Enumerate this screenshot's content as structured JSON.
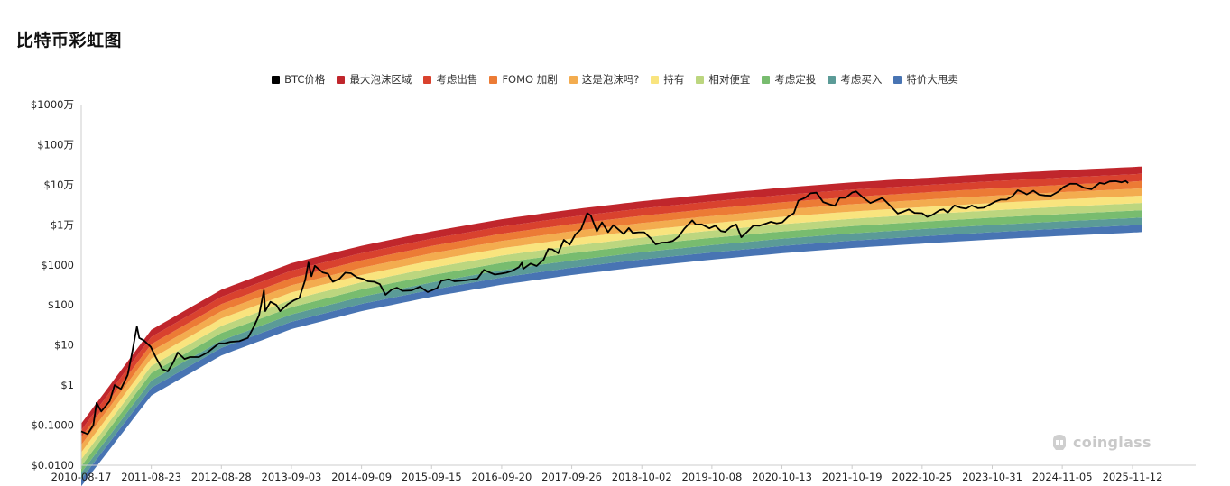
{
  "title": "比特币彩虹图",
  "watermark": "coinglass",
  "legend": [
    {
      "label": "BTC价格",
      "color": "#000000"
    },
    {
      "label": "最大泡沫区域",
      "color": "#c0262c"
    },
    {
      "label": "考虑出售",
      "color": "#d9422e"
    },
    {
      "label": "FOMO 加剧",
      "color": "#ec7b35"
    },
    {
      "label": "这是泡沫吗?",
      "color": "#f3ac4f"
    },
    {
      "label": "持有",
      "color": "#f9e47e"
    },
    {
      "label": "相对便宜",
      "color": "#bcd67f"
    },
    {
      "label": "考虑定投",
      "color": "#78bc6f"
    },
    {
      "label": "考虑买入",
      "color": "#5b9b97"
    },
    {
      "label": "特价大甩卖",
      "color": "#4874b3"
    }
  ],
  "chart_data": {
    "type": "line",
    "yscale": "log",
    "ylim": [
      0.01,
      10000000
    ],
    "yticks": [
      {
        "value": 0.01,
        "label": "$0.0100"
      },
      {
        "value": 0.1,
        "label": "$0.1000"
      },
      {
        "value": 1,
        "label": "$1"
      },
      {
        "value": 10,
        "label": "$10"
      },
      {
        "value": 100,
        "label": "$100"
      },
      {
        "value": 1000,
        "label": "$1000"
      },
      {
        "value": 10000,
        "label": "$1万"
      },
      {
        "value": 100000,
        "label": "$10万"
      },
      {
        "value": 1000000,
        "label": "$100万"
      },
      {
        "value": 10000000,
        "label": "$1000万"
      }
    ],
    "xlim": [
      "2010-08-17",
      "2025-12-30"
    ],
    "xticks": [
      "2010-08-17",
      "2011-08-23",
      "2012-08-28",
      "2013-09-03",
      "2014-09-09",
      "2015-09-15",
      "2016-09-20",
      "2017-09-26",
      "2018-10-02",
      "2019-10-08",
      "2020-10-13",
      "2021-10-19",
      "2022-10-25",
      "2023-10-31",
      "2024-11-05",
      "2025-11-12"
    ],
    "bands": {
      "boundaries": [
        {
          "x": "2010-08-17",
          "values": [
            0.003,
            0.0045,
            0.0065,
            0.0095,
            0.014,
            0.021,
            0.032,
            0.05,
            0.075,
            0.11
          ]
        },
        {
          "x": "2011-08-23",
          "values": [
            0.55,
            0.85,
            1.3,
            2.0,
            3.0,
            4.6,
            7.0,
            10.5,
            16,
            24
          ]
        },
        {
          "x": "2012-08-28",
          "values": [
            5.5,
            8.5,
            13,
            20,
            30,
            46,
            70,
            105,
            160,
            240
          ]
        },
        {
          "x": "2013-09-03",
          "values": [
            25,
            38,
            58,
            88,
            135,
            205,
            310,
            470,
            720,
            1100
          ]
        },
        {
          "x": "2014-09-09",
          "values": [
            70,
            106,
            160,
            245,
            370,
            560,
            850,
            1300,
            1970,
            3000
          ]
        },
        {
          "x": "2015-09-15",
          "values": [
            160,
            240,
            365,
            555,
            845,
            1285,
            1950,
            2970,
            4500,
            6850
          ]
        },
        {
          "x": "2016-09-20",
          "values": [
            320,
            485,
            740,
            1125,
            1710,
            2600,
            3950,
            6000,
            9100,
            13800
          ]
        },
        {
          "x": "2017-09-26",
          "values": [
            560,
            850,
            1290,
            1960,
            2980,
            4530,
            6880,
            10450,
            15900,
            24100
          ]
        },
        {
          "x": "2018-10-02",
          "values": [
            900,
            1370,
            2080,
            3160,
            4800,
            7290,
            11100,
            16800,
            25600,
            38900
          ]
        },
        {
          "x": "2019-10-08",
          "values": [
            1350,
            2050,
            3120,
            4740,
            7200,
            10950,
            16600,
            25250,
            38400,
            58300
          ]
        },
        {
          "x": "2020-10-13",
          "values": [
            1950,
            2960,
            4500,
            6840,
            10400,
            15800,
            24000,
            36450,
            55400,
            84200
          ]
        },
        {
          "x": "2021-10-19",
          "values": [
            2650,
            4030,
            6120,
            9300,
            14150,
            21500,
            32650,
            49600,
            75400,
            114600
          ]
        },
        {
          "x": "2022-10-25",
          "values": [
            3400,
            5170,
            7850,
            11950,
            18150,
            27600,
            41900,
            63700,
            96800,
            147100
          ]
        },
        {
          "x": "2023-10-31",
          "values": [
            4300,
            6540,
            9940,
            15100,
            22950,
            34900,
            53000,
            80600,
            122500,
            186100
          ]
        },
        {
          "x": "2024-11-05",
          "values": [
            5300,
            8060,
            12250,
            18600,
            28300,
            43000,
            65350,
            99300,
            150900,
            229400
          ]
        },
        {
          "x": "2025-11-12",
          "values": [
            6400,
            9730,
            14800,
            22500,
            34200,
            52000,
            79000,
            120000,
            182500,
            277400
          ]
        },
        {
          "x": "2025-12-30",
          "values": [
            6600,
            10030,
            15250,
            23180,
            35230,
            53550,
            81400,
            123700,
            188000,
            285800
          ]
        }
      ]
    },
    "series": [
      {
        "name": "BTC价格",
        "color": "#000000",
        "points": [
          [
            "2010-08-17",
            0.07
          ],
          [
            "2010-09-20",
            0.06
          ],
          [
            "2010-10-20",
            0.1
          ],
          [
            "2010-11-06",
            0.36
          ],
          [
            "2010-12-01",
            0.22
          ],
          [
            "2011-01-15",
            0.4
          ],
          [
            "2011-02-10",
            1.0
          ],
          [
            "2011-03-15",
            0.8
          ],
          [
            "2011-04-20",
            1.8
          ],
          [
            "2011-05-15",
            7
          ],
          [
            "2011-06-08",
            29
          ],
          [
            "2011-06-20",
            15
          ],
          [
            "2011-07-15",
            13
          ],
          [
            "2011-08-20",
            9
          ],
          [
            "2011-09-15",
            5
          ],
          [
            "2011-10-20",
            2.5
          ],
          [
            "2011-11-18",
            2.2
          ],
          [
            "2011-12-15",
            3.5
          ],
          [
            "2012-01-10",
            6.5
          ],
          [
            "2012-02-15",
            4.5
          ],
          [
            "2012-03-15",
            5.0
          ],
          [
            "2012-05-01",
            5.0
          ],
          [
            "2012-06-15",
            6.5
          ],
          [
            "2012-08-15",
            11
          ],
          [
            "2012-09-15",
            11
          ],
          [
            "2012-10-15",
            12
          ],
          [
            "2012-12-01",
            12.5
          ],
          [
            "2013-01-15",
            15
          ],
          [
            "2013-02-15",
            28
          ],
          [
            "2013-03-15",
            55
          ],
          [
            "2013-04-10",
            230
          ],
          [
            "2013-04-17",
            70
          ],
          [
            "2013-05-15",
            120
          ],
          [
            "2013-06-15",
            100
          ],
          [
            "2013-07-05",
            70
          ],
          [
            "2013-08-15",
            105
          ],
          [
            "2013-09-15",
            130
          ],
          [
            "2013-10-15",
            150
          ],
          [
            "2013-11-15",
            420
          ],
          [
            "2013-12-02",
            1150
          ],
          [
            "2013-12-18",
            520
          ],
          [
            "2014-01-05",
            950
          ],
          [
            "2014-02-15",
            650
          ],
          [
            "2014-03-15",
            600
          ],
          [
            "2014-04-10",
            380
          ],
          [
            "2014-05-15",
            450
          ],
          [
            "2014-06-15",
            640
          ],
          [
            "2014-07-15",
            620
          ],
          [
            "2014-08-15",
            490
          ],
          [
            "2014-09-15",
            450
          ],
          [
            "2014-10-15",
            390
          ],
          [
            "2014-11-15",
            380
          ],
          [
            "2014-12-15",
            330
          ],
          [
            "2015-01-14",
            180
          ],
          [
            "2015-02-15",
            240
          ],
          [
            "2015-03-15",
            270
          ],
          [
            "2015-04-15",
            225
          ],
          [
            "2015-06-01",
            230
          ],
          [
            "2015-07-15",
            285
          ],
          [
            "2015-08-25",
            210
          ],
          [
            "2015-09-15",
            230
          ],
          [
            "2015-10-15",
            265
          ],
          [
            "2015-11-05",
            400
          ],
          [
            "2015-12-15",
            440
          ],
          [
            "2016-01-15",
            390
          ],
          [
            "2016-03-15",
            415
          ],
          [
            "2016-05-15",
            455
          ],
          [
            "2016-06-18",
            750
          ],
          [
            "2016-07-15",
            660
          ],
          [
            "2016-08-15",
            575
          ],
          [
            "2016-09-20",
            610
          ],
          [
            "2016-10-15",
            640
          ],
          [
            "2016-11-15",
            710
          ],
          [
            "2016-12-20",
            880
          ],
          [
            "2017-01-05",
            1130
          ],
          [
            "2017-01-12",
            800
          ],
          [
            "2017-02-20",
            1080
          ],
          [
            "2017-03-24",
            940
          ],
          [
            "2017-04-30",
            1350
          ],
          [
            "2017-05-25",
            2500
          ],
          [
            "2017-06-15",
            2450
          ],
          [
            "2017-07-16",
            1950
          ],
          [
            "2017-08-15",
            4200
          ],
          [
            "2017-09-15",
            3200
          ],
          [
            "2017-10-15",
            5700
          ],
          [
            "2017-11-15",
            7800
          ],
          [
            "2017-12-17",
            19500
          ],
          [
            "2018-01-05",
            17000
          ],
          [
            "2018-02-06",
            6900
          ],
          [
            "2018-03-05",
            11500
          ],
          [
            "2018-04-06",
            6600
          ],
          [
            "2018-05-05",
            9800
          ],
          [
            "2018-06-28",
            5900
          ],
          [
            "2018-07-25",
            8300
          ],
          [
            "2018-08-15",
            6300
          ],
          [
            "2018-09-15",
            6500
          ],
          [
            "2018-10-15",
            6500
          ],
          [
            "2018-11-20",
            4500
          ],
          [
            "2018-12-15",
            3250
          ],
          [
            "2019-01-15",
            3600
          ],
          [
            "2019-02-15",
            3650
          ],
          [
            "2019-03-15",
            3950
          ],
          [
            "2019-04-15",
            5100
          ],
          [
            "2019-05-15",
            8000
          ],
          [
            "2019-06-26",
            12900
          ],
          [
            "2019-07-15",
            10200
          ],
          [
            "2019-08-15",
            10300
          ],
          [
            "2019-09-25",
            8200
          ],
          [
            "2019-10-26",
            9500
          ],
          [
            "2019-11-25",
            7000
          ],
          [
            "2019-12-17",
            6700
          ],
          [
            "2020-01-15",
            8800
          ],
          [
            "2020-02-13",
            10300
          ],
          [
            "2020-03-12",
            4900
          ],
          [
            "2020-04-15",
            6900
          ],
          [
            "2020-05-15",
            9600
          ],
          [
            "2020-06-15",
            9450
          ],
          [
            "2020-07-27",
            11000
          ],
          [
            "2020-08-15",
            11900
          ],
          [
            "2020-09-15",
            10800
          ],
          [
            "2020-10-15",
            11500
          ],
          [
            "2020-11-15",
            16000
          ],
          [
            "2020-12-15",
            19400
          ],
          [
            "2021-01-08",
            40000
          ],
          [
            "2021-02-15",
            48000
          ],
          [
            "2021-03-13",
            61000
          ],
          [
            "2021-04-14",
            63500
          ],
          [
            "2021-05-19",
            37000
          ],
          [
            "2021-06-22",
            32500
          ],
          [
            "2021-07-20",
            29800
          ],
          [
            "2021-08-15",
            47000
          ],
          [
            "2021-09-15",
            47500
          ],
          [
            "2021-10-20",
            64000
          ],
          [
            "2021-11-10",
            68000
          ],
          [
            "2021-12-15",
            48500
          ],
          [
            "2022-01-24",
            35000
          ],
          [
            "2022-03-28",
            47000
          ],
          [
            "2022-05-12",
            29000
          ],
          [
            "2022-06-18",
            19000
          ],
          [
            "2022-07-15",
            21000
          ],
          [
            "2022-08-15",
            24200
          ],
          [
            "2022-09-15",
            19700
          ],
          [
            "2022-10-25",
            19400
          ],
          [
            "2022-11-21",
            15800
          ],
          [
            "2022-12-15",
            17300
          ],
          [
            "2023-01-25",
            23000
          ],
          [
            "2023-02-15",
            24300
          ],
          [
            "2023-03-10",
            20200
          ],
          [
            "2023-04-14",
            30400
          ],
          [
            "2023-05-15",
            27000
          ],
          [
            "2023-06-15",
            25300
          ],
          [
            "2023-07-15",
            30300
          ],
          [
            "2023-08-17",
            26000
          ],
          [
            "2023-09-15",
            26600
          ],
          [
            "2023-10-31",
            34600
          ],
          [
            "2023-11-15",
            37800
          ],
          [
            "2023-12-15",
            42500
          ],
          [
            "2024-01-15",
            42600
          ],
          [
            "2024-02-15",
            51800
          ],
          [
            "2024-03-14",
            73000
          ],
          [
            "2024-04-15",
            63500
          ],
          [
            "2024-05-01",
            57500
          ],
          [
            "2024-06-05",
            71000
          ],
          [
            "2024-07-05",
            56500
          ],
          [
            "2024-08-05",
            54000
          ],
          [
            "2024-09-06",
            53000
          ],
          [
            "2024-10-15",
            67000
          ],
          [
            "2024-11-12",
            88000
          ],
          [
            "2024-12-17",
            106000
          ],
          [
            "2025-01-20",
            105000
          ],
          [
            "2025-02-28",
            84000
          ],
          [
            "2025-04-08",
            77000
          ],
          [
            "2025-05-22",
            111000
          ],
          [
            "2025-06-15",
            105000
          ],
          [
            "2025-07-14",
            121000
          ],
          [
            "2025-08-14",
            123000
          ],
          [
            "2025-09-15",
            115000
          ],
          [
            "2025-10-06",
            124000
          ],
          [
            "2025-10-20",
            110000
          ]
        ]
      }
    ]
  }
}
